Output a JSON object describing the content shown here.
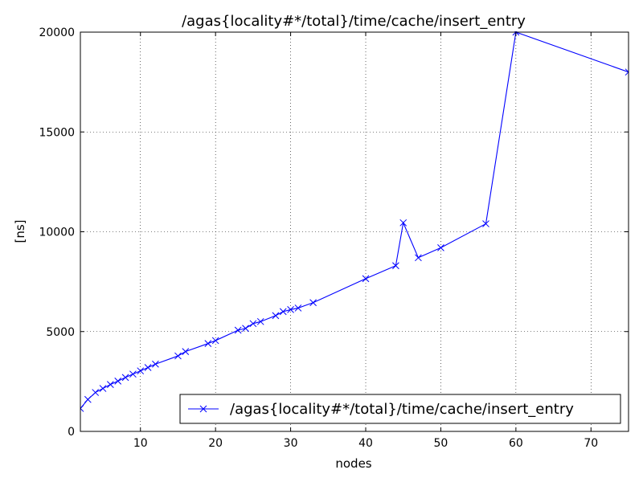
{
  "chart_data": {
    "type": "line",
    "title": "/agas{locality#*/total}/time/cache/insert_entry",
    "xlabel": "nodes",
    "ylabel": "[ns]",
    "xlim": [
      2,
      75
    ],
    "ylim": [
      0,
      20000
    ],
    "xticks": [
      10,
      20,
      30,
      40,
      50,
      60,
      70
    ],
    "yticks": [
      0,
      5000,
      10000,
      15000,
      20000
    ],
    "grid": true,
    "legend_position": "lower-right",
    "series": [
      {
        "name": "/agas{locality#*/total}/time/cache/insert_entry",
        "color": "#0000ff",
        "marker": "x",
        "x": [
          2,
          3,
          4,
          5,
          6,
          7,
          8,
          9,
          10,
          11,
          12,
          15,
          16,
          19,
          20,
          23,
          24,
          25,
          26,
          28,
          29,
          30,
          31,
          33,
          40,
          44,
          45,
          47,
          50,
          56,
          60,
          75
        ],
        "y": [
          1150,
          1600,
          1950,
          2150,
          2350,
          2520,
          2700,
          2870,
          3030,
          3200,
          3370,
          3780,
          4000,
          4400,
          4550,
          5070,
          5160,
          5400,
          5500,
          5800,
          6000,
          6100,
          6180,
          6450,
          7650,
          8300,
          10450,
          8700,
          9200,
          10400,
          20000,
          18000
        ]
      }
    ]
  }
}
